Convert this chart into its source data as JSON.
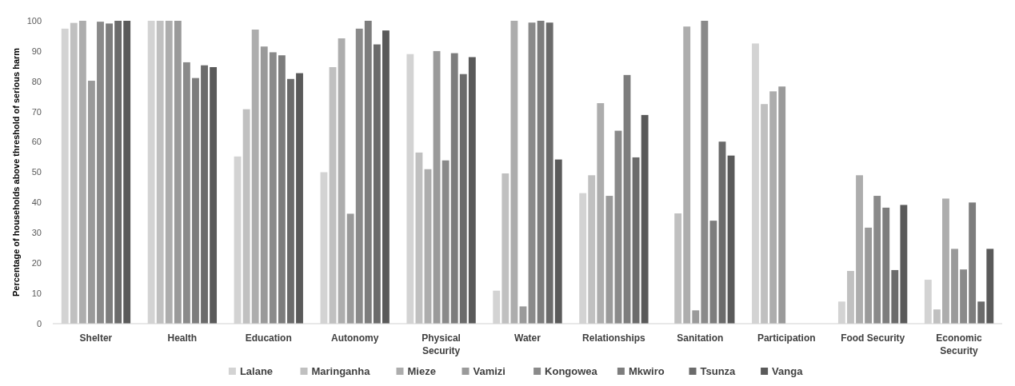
{
  "chart_data": {
    "type": "bar",
    "ylabel": "Percentage of households above threshold of serious harm",
    "categories": [
      "Shelter",
      "Health",
      "Education",
      "Autonomy",
      "Physical Security",
      "Water",
      "Relationships",
      "Sanitation",
      "Participation",
      "Food Security",
      "Economic Security"
    ],
    "series": [
      {
        "name": "Lalane",
        "color": "#d3d3d3",
        "values": [
          97.4,
          100,
          55.2,
          50,
          89,
          10.9,
          43.1,
          null,
          92.5,
          7.3,
          14.5
        ]
      },
      {
        "name": "Maringanha",
        "color": "#c0c0c0",
        "values": [
          99.3,
          100,
          70.8,
          84.7,
          56.5,
          49.6,
          49,
          36.4,
          72.5,
          17.4,
          4.7
        ]
      },
      {
        "name": "Mieze",
        "color": "#adadad",
        "values": [
          100,
          100,
          97.1,
          94.2,
          51,
          100,
          72.8,
          98.1,
          76.7,
          49,
          41.3
        ]
      },
      {
        "name": "Vamizi",
        "color": "#9a9a9a",
        "values": [
          80.2,
          100,
          91.5,
          36.3,
          90,
          5.7,
          42.2,
          4.4,
          78.3,
          31.7,
          24.7
        ]
      },
      {
        "name": "Kongowea",
        "color": "#8a8a8a",
        "values": [
          99.7,
          86.3,
          89.6,
          97.4,
          53.9,
          99.4,
          63.7,
          100,
          null,
          42.2,
          17.9
        ]
      },
      {
        "name": "Mkwiro",
        "color": "#7d7d7d",
        "values": [
          99.1,
          81.1,
          88.6,
          100,
          89.3,
          100,
          82.1,
          34,
          null,
          38.3,
          40
        ]
      },
      {
        "name": "Tsunza",
        "color": "#6b6b6b",
        "values": [
          100,
          85.3,
          80.8,
          92.2,
          82.4,
          99.4,
          54.9,
          60.1,
          null,
          17.7,
          7.3
        ]
      },
      {
        "name": "Vanga",
        "color": "#5a5a5a",
        "values": [
          100,
          84.7,
          82.7,
          96.8,
          88,
          54.2,
          68.9,
          55.5,
          null,
          39.2,
          24.7
        ]
      }
    ],
    "ylim": [
      0,
      100
    ],
    "yticks": [
      0,
      10,
      20,
      30,
      40,
      50,
      60,
      70,
      80,
      90,
      100
    ],
    "grid": false,
    "legend": "bottom"
  }
}
